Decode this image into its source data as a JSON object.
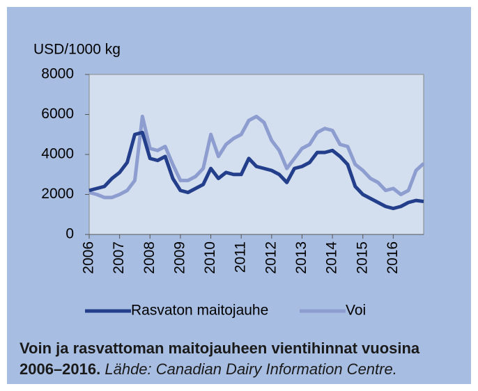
{
  "chart_data": {
    "type": "line",
    "axis_label": "USD/1000 kg",
    "x": [
      2006,
      2006.25,
      2006.5,
      2006.75,
      2007,
      2007.25,
      2007.5,
      2007.75,
      2008,
      2008.25,
      2008.5,
      2008.75,
      2009,
      2009.25,
      2009.5,
      2009.75,
      2010,
      2010.25,
      2010.5,
      2010.75,
      2011,
      2011.25,
      2011.5,
      2011.75,
      2012,
      2012.25,
      2012.5,
      2012.75,
      2013,
      2013.25,
      2013.5,
      2013.75,
      2014,
      2014.25,
      2014.5,
      2014.75,
      2015,
      2015.25,
      2015.5,
      2015.75,
      2016,
      2016.25,
      2016.5,
      2016.75,
      2017
    ],
    "series": [
      {
        "name": "Rasvaton maitojauhe",
        "color": "#233f8b",
        "values": [
          2200,
          2300,
          2400,
          2800,
          3100,
          3600,
          5000,
          5100,
          3800,
          3700,
          3900,
          2800,
          2200,
          2100,
          2300,
          2500,
          3300,
          2800,
          3100,
          3000,
          3000,
          3800,
          3400,
          3300,
          3200,
          3000,
          2600,
          3300,
          3400,
          3600,
          4100,
          4100,
          4200,
          3900,
          3500,
          2400,
          2000,
          1800,
          1600,
          1400,
          1300,
          1400,
          1600,
          1700,
          1650
        ]
      },
      {
        "name": "Voi",
        "color": "#8d9dcf",
        "values": [
          2100,
          2000,
          1850,
          1850,
          2000,
          2200,
          2700,
          5900,
          4300,
          4200,
          4400,
          3500,
          2700,
          2700,
          2900,
          3300,
          5000,
          3900,
          4500,
          4800,
          5000,
          5700,
          5900,
          5600,
          4700,
          4200,
          3300,
          3800,
          4300,
          4500,
          5100,
          5300,
          5200,
          4500,
          4400,
          3500,
          3200,
          2800,
          2600,
          2200,
          2300,
          2000,
          2200,
          3200,
          3550
        ]
      }
    ],
    "xlim": [
      2006,
      2017
    ],
    "xticks": [
      2006,
      2007,
      2008,
      2009,
      2010,
      2011,
      2012,
      2013,
      2014,
      2015,
      2016
    ],
    "ylim": [
      0,
      8000
    ],
    "yticks": [
      0,
      2000,
      4000,
      6000,
      8000
    ],
    "legend": "bottom"
  },
  "caption": {
    "text": "Voin ja rasvattoman maitojauheen vientihinnat vuosina 2006–2016.",
    "source": "Lähde: Canadian Dairy Information Centre."
  }
}
